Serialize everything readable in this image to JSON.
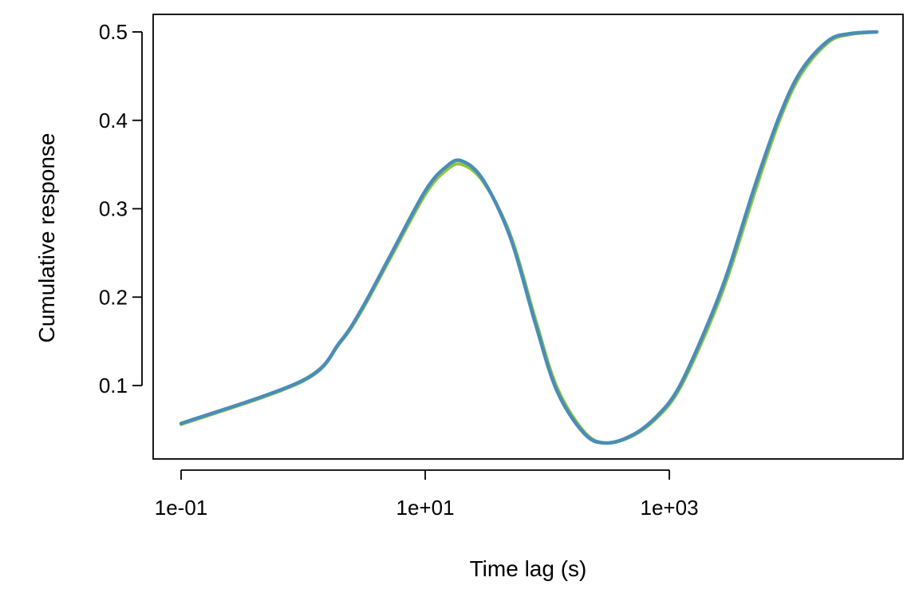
{
  "chart_data": {
    "type": "line",
    "title": "",
    "xlabel": "Time lag (s)",
    "ylabel": "Cumulative response",
    "x_scale": "log",
    "xlim": [
      0.1,
      50000
    ],
    "ylim": [
      0.035,
      0.5
    ],
    "grid": false,
    "legend": "none",
    "x_ticks": [
      {
        "value": 0.1,
        "label": "1e-01"
      },
      {
        "value": 10,
        "label": "1e+01"
      },
      {
        "value": 1000,
        "label": "1e+03"
      }
    ],
    "y_ticks": [
      {
        "value": 0.1,
        "label": "0.1"
      },
      {
        "value": 0.2,
        "label": "0.2"
      },
      {
        "value": 0.3,
        "label": "0.3"
      },
      {
        "value": 0.4,
        "label": "0.4"
      },
      {
        "value": 0.5,
        "label": "0.5"
      }
    ],
    "series": [
      {
        "color": "#8DC63F",
        "x": [
          0.1,
          1,
          2,
          3,
          5,
          10,
          15,
          20,
          30,
          50,
          80,
          120,
          200,
          300,
          500,
          800,
          1200,
          2000,
          3000,
          5000,
          8000,
          12000,
          20000,
          30000,
          50000
        ],
        "y": [
          0.056,
          0.105,
          0.148,
          0.184,
          0.24,
          0.316,
          0.344,
          0.35,
          0.33,
          0.27,
          0.175,
          0.098,
          0.048,
          0.035,
          0.043,
          0.064,
          0.095,
          0.16,
          0.222,
          0.318,
          0.4,
          0.452,
          0.488,
          0.497,
          0.5
        ]
      },
      {
        "color": "#4A8DB7",
        "x": [
          0.1,
          1,
          2,
          3,
          5,
          10,
          15,
          20,
          30,
          50,
          80,
          120,
          200,
          300,
          500,
          800,
          1200,
          2000,
          3000,
          5000,
          8000,
          12000,
          20000,
          30000,
          50000
        ],
        "y": [
          0.057,
          0.106,
          0.149,
          0.186,
          0.243,
          0.32,
          0.348,
          0.354,
          0.332,
          0.267,
          0.17,
          0.094,
          0.046,
          0.035,
          0.044,
          0.066,
          0.098,
          0.165,
          0.228,
          0.325,
          0.405,
          0.456,
          0.49,
          0.498,
          0.5
        ]
      }
    ]
  }
}
